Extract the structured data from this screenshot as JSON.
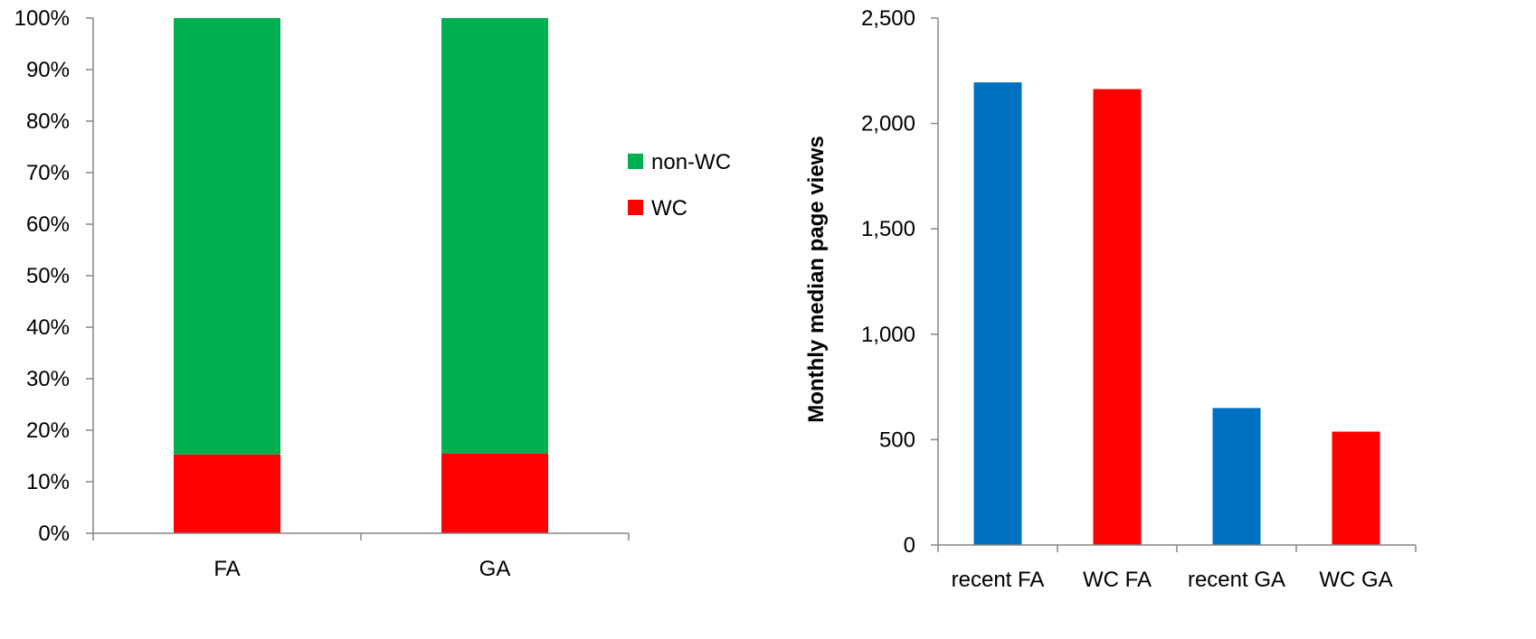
{
  "chart_data": [
    {
      "type": "bar",
      "stacked": true,
      "percent": true,
      "categories": [
        "FA",
        "GA"
      ],
      "series": [
        {
          "name": "WC",
          "color": "#FF0000",
          "values": [
            15.3,
            15.5
          ]
        },
        {
          "name": "non-WC",
          "color": "#00B050",
          "values": [
            84.7,
            84.5
          ]
        }
      ],
      "yticks": [
        "0%",
        "10%",
        "20%",
        "30%",
        "40%",
        "50%",
        "60%",
        "70%",
        "80%",
        "90%",
        "100%"
      ],
      "ylim": [
        0,
        100
      ],
      "legend": {
        "placement": "right",
        "entries": [
          {
            "label": "non-WC",
            "color": "#00B050"
          },
          {
            "label": "WC",
            "color": "#FF0000"
          }
        ]
      },
      "grid": false
    },
    {
      "type": "bar",
      "categories": [
        "recent FA",
        "WC FA",
        "recent GA",
        "WC GA"
      ],
      "values": [
        2195,
        2163,
        650,
        538
      ],
      "colors": [
        "#0070C0",
        "#FF0000",
        "#0070C0",
        "#FF0000"
      ],
      "ylabel": "Monthly median page views",
      "yticks": [
        "0",
        "500",
        "1,000",
        "1,500",
        "2,000",
        "2,500"
      ],
      "ylim": [
        0,
        2500
      ],
      "grid": false
    }
  ]
}
